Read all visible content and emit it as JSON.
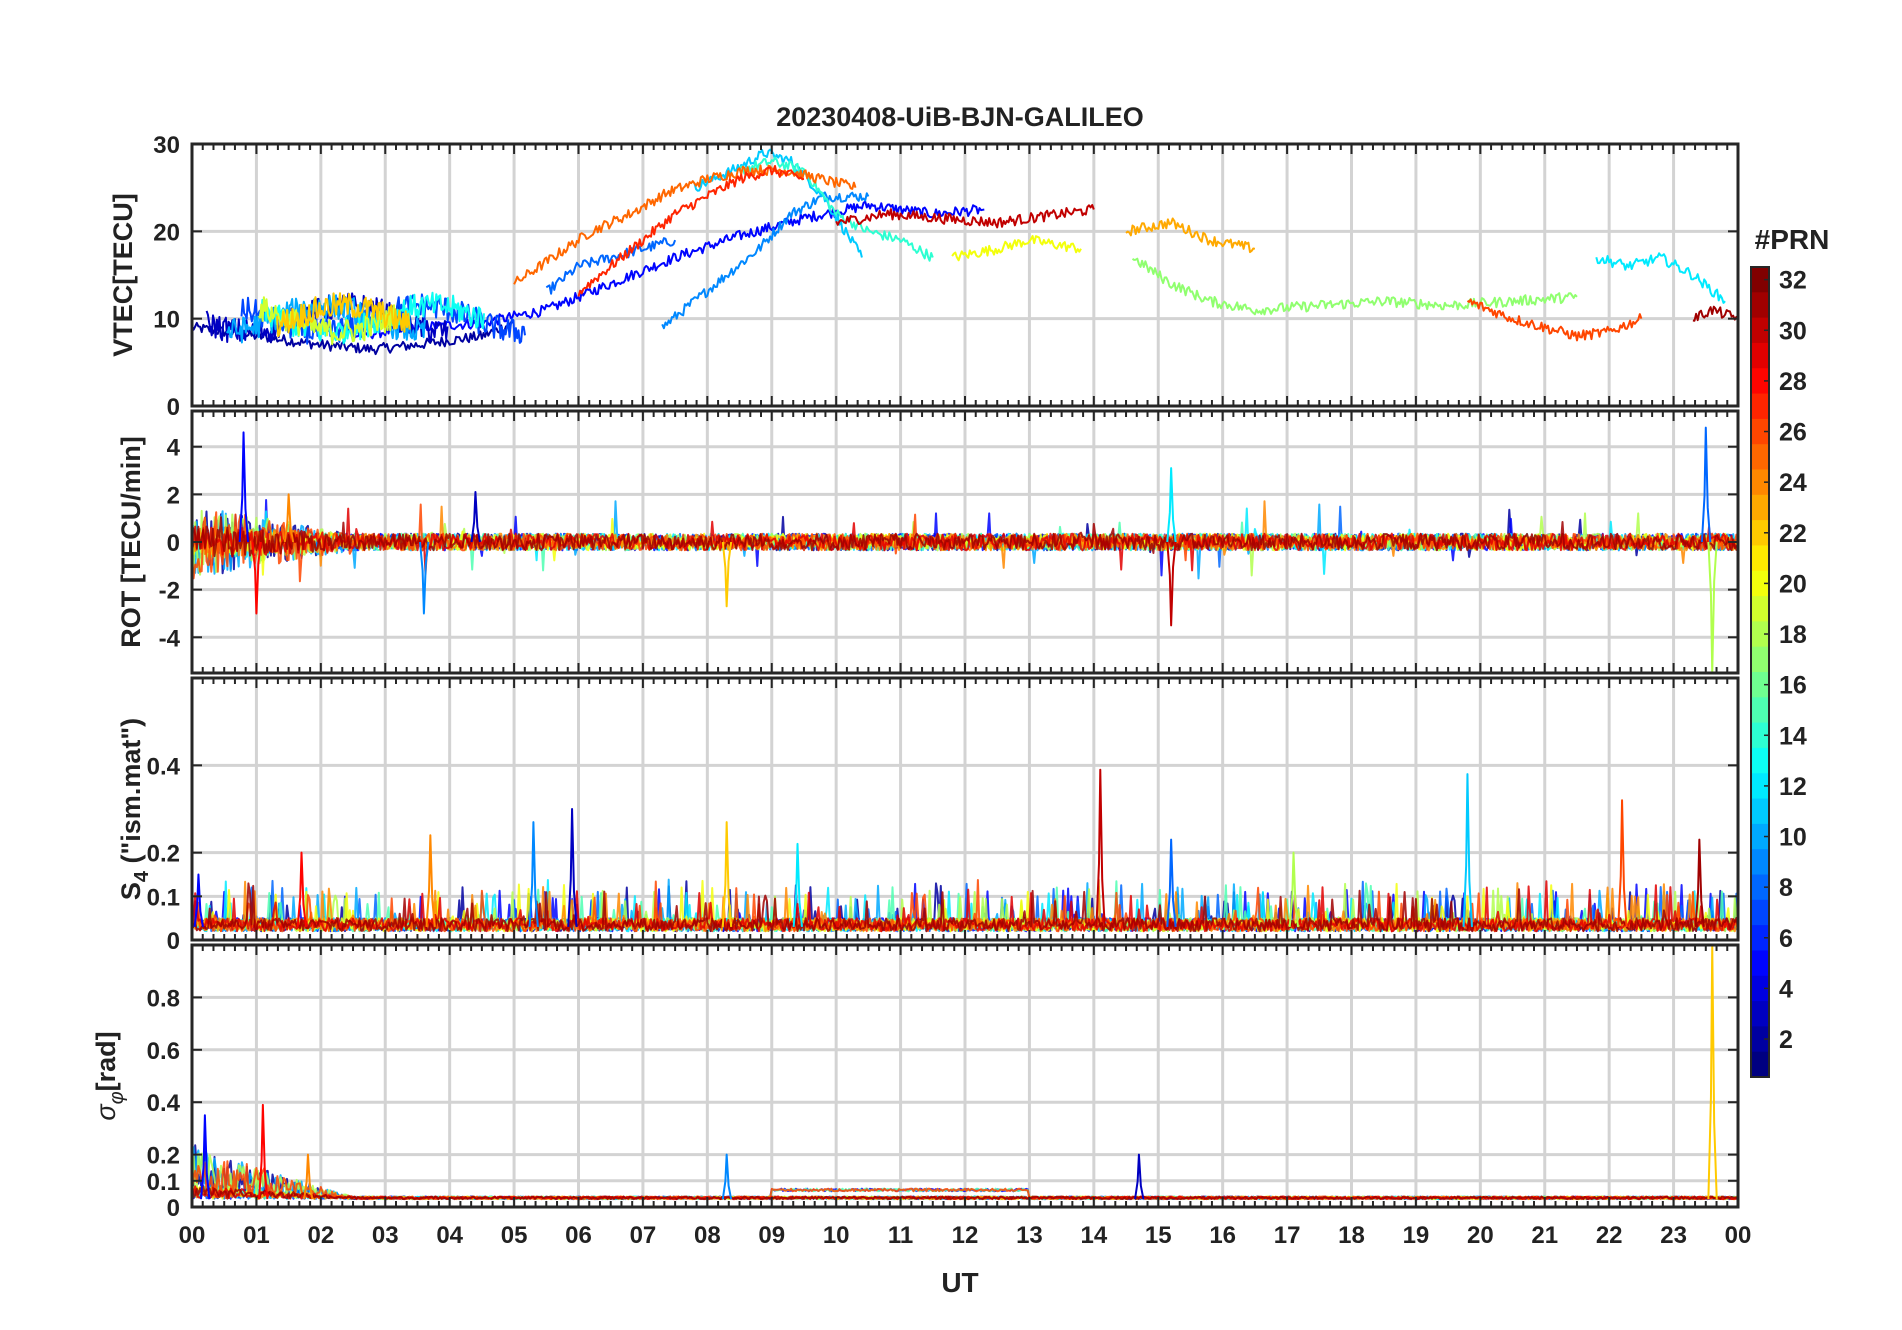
{
  "figure": {
    "title": "20230408-UiB-BJN-GALILEO",
    "xlabel": "UT",
    "x_tick_labels": [
      "00",
      "01",
      "02",
      "03",
      "04",
      "05",
      "06",
      "07",
      "08",
      "09",
      "10",
      "11",
      "12",
      "13",
      "14",
      "15",
      "16",
      "17",
      "18",
      "19",
      "20",
      "21",
      "22",
      "23",
      "00"
    ]
  },
  "colorbar": {
    "label": "#PRN",
    "range": [
      1,
      32
    ],
    "ticks": [
      2,
      4,
      6,
      8,
      10,
      12,
      14,
      16,
      18,
      20,
      22,
      24,
      26,
      28,
      30,
      32
    ],
    "colormap": "jet"
  },
  "chart_data": [
    {
      "type": "line",
      "panel": "vtec",
      "ylabel": "VTEC[TECU]",
      "xlim": [
        0,
        24
      ],
      "ylim": [
        0,
        30
      ],
      "yticks": [
        0,
        10,
        20,
        30
      ],
      "grid": true,
      "series": [
        {
          "prn": 2,
          "x": [
            0,
            1,
            2,
            2.8,
            3.5,
            4.0,
            4.5,
            5.0
          ],
          "y": [
            9,
            8,
            7,
            6.5,
            7,
            7.5,
            8,
            9.5
          ]
        },
        {
          "prn": 5,
          "x": [
            2.5,
            3.5,
            4.5,
            5.5,
            6.5,
            7.5,
            8.5,
            9.5,
            10.5,
            11.5,
            12.3
          ],
          "y": [
            8,
            9,
            9.5,
            11,
            14,
            17,
            19.5,
            21.5,
            23,
            22,
            22.5
          ]
        },
        {
          "prn": 8,
          "x": [
            5.5,
            6.0,
            6.5,
            7.0,
            7.5
          ],
          "y": [
            13,
            16,
            17,
            18,
            19
          ]
        },
        {
          "prn": 9,
          "x": [
            7.3,
            7.8,
            8.3,
            8.8,
            9.3,
            9.8,
            10.5
          ],
          "y": [
            9,
            12,
            15,
            18,
            22,
            24,
            24
          ]
        },
        {
          "prn": 11,
          "x": [
            7.8,
            8.4,
            8.9,
            9.3,
            9.8,
            10.4
          ],
          "y": [
            25,
            27,
            29,
            28,
            24,
            17
          ]
        },
        {
          "prn": 14,
          "x": [
            8.5,
            9.0,
            9.5,
            10.0,
            10.5,
            11.0,
            11.5
          ],
          "y": [
            27,
            28,
            27,
            22,
            20,
            19,
            17
          ]
        },
        {
          "prn": 20,
          "x": [
            11.8,
            12.5,
            13.0,
            13.8
          ],
          "y": [
            17,
            18,
            19,
            18
          ]
        },
        {
          "prn": 25,
          "x": [
            5.0,
            5.6,
            6.2,
            6.8,
            7.4,
            8.0,
            8.6,
            9.2,
            10.3
          ],
          "y": [
            14,
            17,
            20,
            22,
            24.5,
            26,
            27,
            27,
            25
          ]
        },
        {
          "prn": 27,
          "x": [
            6.0,
            6.5,
            7.0,
            7.5,
            8.0,
            8.5,
            9.0,
            9.5
          ],
          "y": [
            13,
            16,
            19,
            22,
            24,
            26,
            27,
            26
          ]
        },
        {
          "prn": 30,
          "x": [
            10.0,
            10.8,
            11.6,
            12.5,
            13.5,
            14.0
          ],
          "y": [
            21,
            22,
            21.5,
            21,
            22,
            22.5
          ]
        },
        {
          "prn": 23,
          "x": [
            14.5,
            15.2,
            15.8,
            16.5
          ],
          "y": [
            20,
            21,
            19,
            18
          ]
        },
        {
          "prn": 17,
          "x": [
            14.6,
            15.2,
            15.8,
            16.5,
            17.5,
            18.5,
            19.5,
            20.5,
            21.5
          ],
          "y": [
            17,
            14,
            12,
            11,
            11.5,
            12,
            11.5,
            12,
            12.5
          ]
        },
        {
          "prn": 26,
          "x": [
            19.8,
            20.5,
            21.0,
            21.5,
            22.0,
            22.5
          ],
          "y": [
            12,
            10,
            9,
            8,
            8.5,
            10
          ]
        },
        {
          "prn": 12,
          "x": [
            21.8,
            22.3,
            22.8,
            23.3,
            23.8
          ],
          "y": [
            17,
            16,
            17,
            15,
            12
          ]
        },
        {
          "prn": 31,
          "x": [
            23.3,
            23.6,
            24.0
          ],
          "y": [
            10,
            11,
            10
          ]
        }
      ]
    },
    {
      "type": "line",
      "panel": "rot",
      "ylabel": "ROT [TECU/min]",
      "xlim": [
        0,
        24
      ],
      "ylim": [
        -5.5,
        5.5
      ],
      "yticks": [
        -4,
        -2,
        0,
        2,
        4
      ],
      "grid": true,
      "spikes": [
        {
          "x": 0.8,
          "y": 4.6
        },
        {
          "x": 1.0,
          "y": -3.0
        },
        {
          "x": 1.5,
          "y": 2.0
        },
        {
          "x": 3.6,
          "y": -3.0
        },
        {
          "x": 4.4,
          "y": 2.1
        },
        {
          "x": 8.3,
          "y": -2.7
        },
        {
          "x": 15.2,
          "y": 3.1
        },
        {
          "x": 15.2,
          "y": -3.5
        },
        {
          "x": 23.5,
          "y": 4.8
        },
        {
          "x": 23.6,
          "y": -5.5
        }
      ]
    },
    {
      "type": "line",
      "panel": "s4",
      "ylabel": "S4 (\"ism.mat\")",
      "xlim": [
        0,
        24
      ],
      "ylim": [
        0,
        0.6
      ],
      "yticks": [
        0,
        0.1,
        0.2,
        0.4
      ],
      "grid": true,
      "spikes": [
        {
          "x": 0.1,
          "y": 0.15
        },
        {
          "x": 1.7,
          "y": 0.2
        },
        {
          "x": 3.7,
          "y": 0.24
        },
        {
          "x": 5.3,
          "y": 0.27
        },
        {
          "x": 5.9,
          "y": 0.3
        },
        {
          "x": 8.3,
          "y": 0.27
        },
        {
          "x": 9.4,
          "y": 0.22
        },
        {
          "x": 14.1,
          "y": 0.39
        },
        {
          "x": 15.2,
          "y": 0.23
        },
        {
          "x": 17.1,
          "y": 0.2
        },
        {
          "x": 19.8,
          "y": 0.38
        },
        {
          "x": 22.2,
          "y": 0.32
        },
        {
          "x": 23.4,
          "y": 0.23
        }
      ]
    },
    {
      "type": "line",
      "panel": "sigma_phi",
      "ylabel": "σφ[rad]",
      "xlim": [
        0,
        24
      ],
      "ylim": [
        0,
        1.0
      ],
      "yticks": [
        0,
        0.1,
        0.2,
        0.4,
        0.6,
        0.8
      ],
      "grid": true,
      "spikes": [
        {
          "x": 0.2,
          "y": 0.35
        },
        {
          "x": 1.1,
          "y": 0.39
        },
        {
          "x": 1.8,
          "y": 0.2
        },
        {
          "x": 8.3,
          "y": 0.2
        },
        {
          "x": 14.7,
          "y": 0.2
        },
        {
          "x": 23.6,
          "y": 1.0
        }
      ]
    }
  ]
}
